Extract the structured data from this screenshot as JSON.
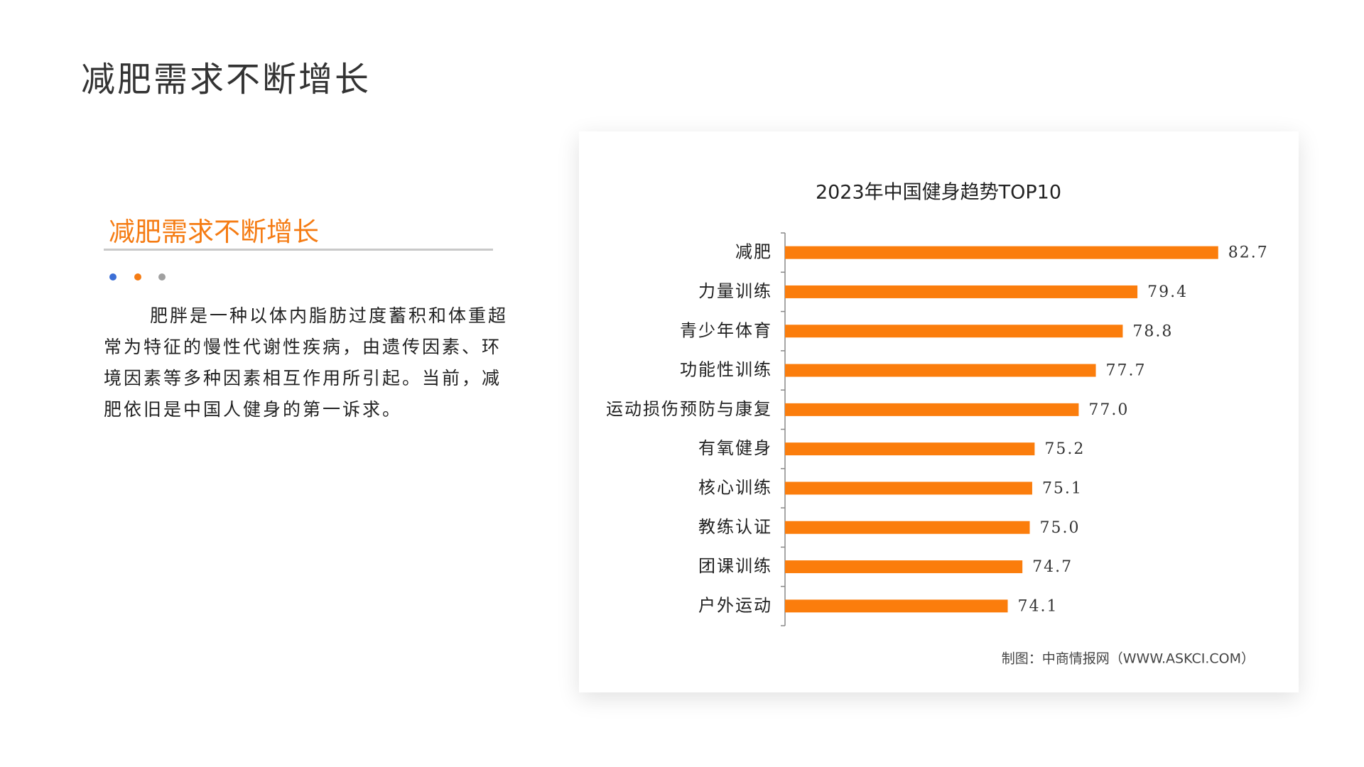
{
  "slide": {
    "title": "减肥需求不断增长",
    "subtitle": "减肥需求不断增长",
    "body": "肥胖是一种以体内脂肪过度蓄积和体重超常为特征的慢性代谢性疾病，由遗传因素、环境因素等多种因素相互作用所引起。当前，减肥依旧是中国人健身的第一诉求。"
  },
  "chart_data": {
    "type": "hbar",
    "title": "2023年中国健身趋势TOP10",
    "categories": [
      "减肥",
      "力量训练",
      "青少年体育",
      "功能性训练",
      "运动损伤预防与康复",
      "有氧健身",
      "核心训练",
      "教练认证",
      "团课训练",
      "户外运动"
    ],
    "values": [
      82.7,
      79.4,
      78.8,
      77.7,
      77.0,
      75.2,
      75.1,
      75.0,
      74.7,
      74.1
    ],
    "value_labels": [
      "82.7",
      "79.4",
      "78.8",
      "77.7",
      "77.0",
      "75.2",
      "75.1",
      "75.0",
      "74.7",
      "74.1"
    ],
    "color": "#fb7d0c",
    "xlim": [
      65,
      85
    ],
    "source": "制图：中商情报网（WWW.ASKCI.COM）"
  }
}
